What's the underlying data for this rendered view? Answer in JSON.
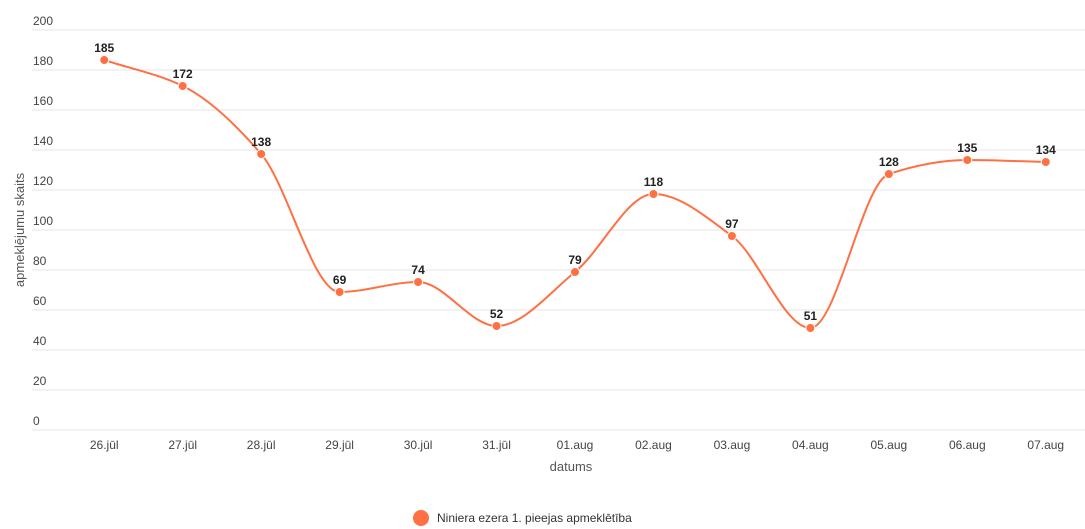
{
  "chart_data": {
    "type": "line",
    "title": "",
    "xlabel": "datums",
    "ylabel": "apmeklējumu skaits",
    "categories": [
      "26.jūl",
      "27.jūl",
      "28.jūl",
      "29.jūl",
      "30.jūl",
      "31.jūl",
      "01.aug",
      "02.aug",
      "03.aug",
      "04.aug",
      "05.aug",
      "06.aug",
      "07.aug"
    ],
    "series": [
      {
        "name": "Niniera ezera 1. pieejas apmeklētība",
        "values": [
          185,
          172,
          138,
          69,
          74,
          52,
          79,
          118,
          97,
          51,
          128,
          135,
          134
        ],
        "color": "#ff7043"
      }
    ],
    "ylim": [
      0,
      200
    ],
    "yticks": [
      0,
      20,
      40,
      60,
      80,
      100,
      120,
      140,
      160,
      180,
      200
    ],
    "grid": true,
    "legend_position": "bottom-center",
    "data_labels": true,
    "smooth": true
  }
}
